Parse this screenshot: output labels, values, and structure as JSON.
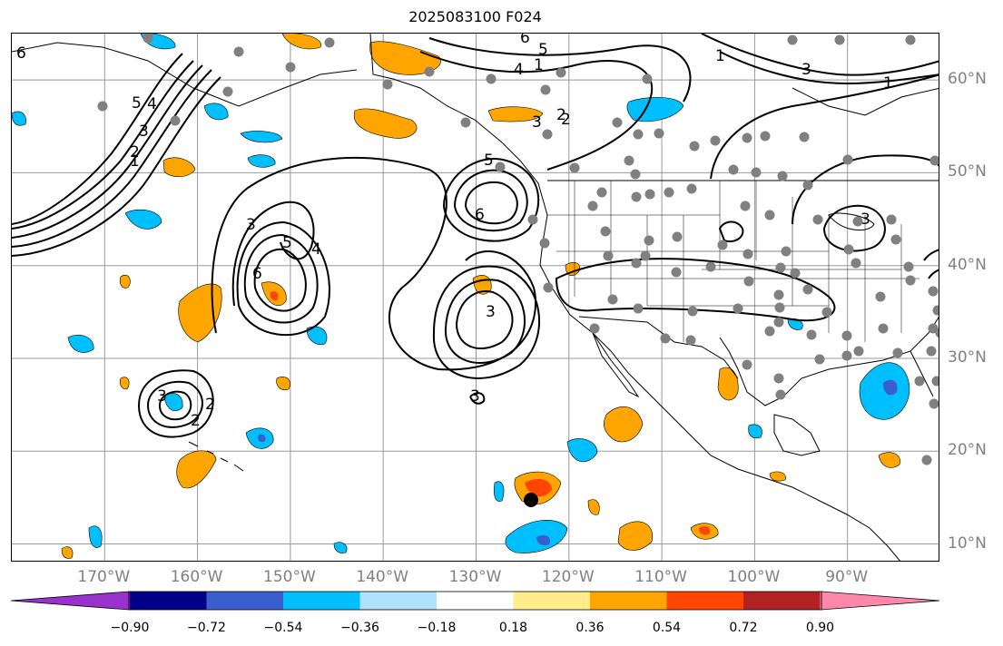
{
  "title": "2025083100 F024",
  "map": {
    "projection": "PlateCarree",
    "extent_lon": [
      -180,
      -80
    ],
    "extent_lat": [
      8,
      65
    ],
    "grid": true,
    "lon_labels": [
      "170°W",
      "160°W",
      "150°W",
      "140°W",
      "130°W",
      "120°W",
      "110°W",
      "100°W",
      "90°W"
    ],
    "lat_labels": [
      "60°N",
      "50°N",
      "40°N",
      "30°N",
      "20°N",
      "10°N"
    ],
    "contour_color": "#000000",
    "contour_labels": [
      "6",
      "5",
      "4",
      "3",
      "2",
      "1",
      "6",
      "5",
      "4",
      "3",
      "2",
      "1",
      "3",
      "4",
      "5",
      "6",
      "6",
      "5",
      "2",
      "1",
      "3",
      "3",
      "2",
      "3",
      "2",
      "1",
      "3",
      "3"
    ],
    "station_marker_color": "#808080",
    "highlight_marker_color": "#000000"
  },
  "colorbar": {
    "ticks": [
      "−0.90",
      "−0.72",
      "−0.54",
      "−0.36",
      "−0.18",
      "0.18",
      "0.36",
      "0.54",
      "0.72",
      "0.90"
    ],
    "colors": [
      "#9932cc",
      "#9932cc",
      "#00008b",
      "#3a5fcd",
      "#00bfff",
      "#b0e2ff",
      "#ffffff",
      "#ffec8b",
      "#ffa500",
      "#ff4500",
      "#b22222",
      "#ff88aa",
      "#ff88aa"
    ],
    "extend": "both"
  }
}
